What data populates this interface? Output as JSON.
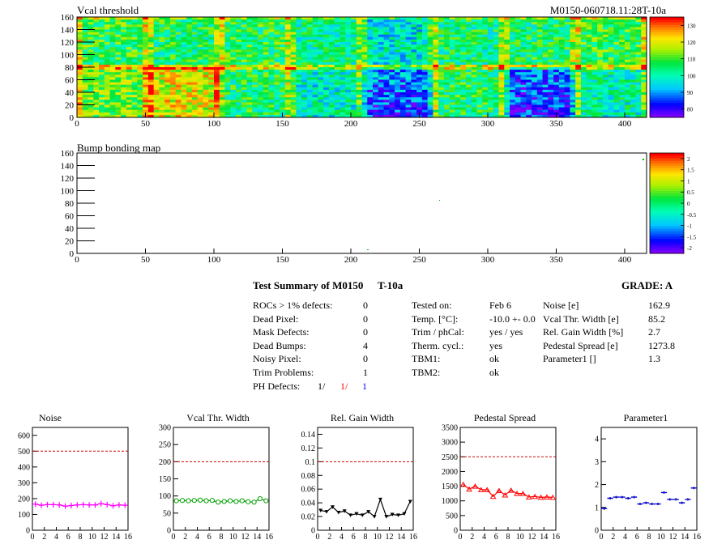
{
  "header": {
    "map_title": "Vcal threshold",
    "module_id": "M0150-060718.11:28T-10a",
    "bump_title": "Bump bonding map"
  },
  "maps": {
    "x_ticks": [
      "0",
      "50",
      "100",
      "150",
      "200",
      "250",
      "300",
      "350",
      "400"
    ],
    "y_ticks": [
      "0",
      "20",
      "40",
      "60",
      "80",
      "100",
      "120",
      "140",
      "160"
    ],
    "vcal_palette_ticks": [
      "80",
      "90",
      "100",
      "110",
      "120",
      "130"
    ],
    "bump_palette_ticks": [
      "-2",
      "-1.5",
      "-1",
      "-0.5",
      "0",
      "0.5",
      "1",
      "1.5",
      "2"
    ]
  },
  "summary": {
    "title": "Test Summary of M0150",
    "temp_tag": "T-10a",
    "grade": "GRADE:  A",
    "defects": [
      {
        "label": "ROCs > 1% defects:",
        "value": "0"
      },
      {
        "label": "Dead Pixel:",
        "value": "0"
      },
      {
        "label": "Mask Defects:",
        "value": "0"
      },
      {
        "label": "Dead Bumps:",
        "value": "4"
      },
      {
        "label": "Noisy Pixel:",
        "value": "0"
      },
      {
        "label": "Trim Problems:",
        "value": "1"
      }
    ],
    "ph": {
      "label": "PH Defects:",
      "v1": "1/",
      "v2": "1/",
      "v3": "1"
    },
    "conditions": [
      {
        "label": "Tested on:",
        "value": "Feb 6"
      },
      {
        "label": "Temp. [°C]:",
        "value": "-10.0 +- 0.0"
      },
      {
        "label": "Trim / phCal:",
        "value": "yes / yes"
      },
      {
        "label": "Therm. cycl.:",
        "value": "yes"
      },
      {
        "label": "TBM1:",
        "value": "ok"
      },
      {
        "label": "TBM2:",
        "value": "ok"
      }
    ],
    "results": [
      {
        "label": "Noise [e]",
        "value": "162.9"
      },
      {
        "label": "Vcal Thr. Width [e]",
        "value": "85.2"
      },
      {
        "label": "Rel. Gain Width [%]",
        "value": "2.7"
      },
      {
        "label": "Pedestal Spread [e]",
        "value": "1273.8"
      },
      {
        "label": "Parameter1 []",
        "value": "1.3"
      }
    ]
  },
  "colors": {
    "noise": "#ff00ff",
    "vcal": "#00a000",
    "gain": "#000000",
    "pedestal": "#ff0000",
    "param1": "#0000cc",
    "limit": "#cc0000"
  },
  "chart_data": [
    {
      "type": "line",
      "title": "Noise",
      "x": [
        0,
        1,
        2,
        3,
        4,
        5,
        6,
        7,
        8,
        9,
        10,
        11,
        12,
        13,
        14,
        15
      ],
      "values": [
        165,
        158,
        162,
        162,
        160,
        152,
        156,
        160,
        162,
        160,
        160,
        168,
        162,
        155,
        160,
        158
      ],
      "ylim": [
        0,
        650
      ],
      "xlim": [
        0,
        16
      ],
      "y_ticks": [
        "0",
        "100",
        "200",
        "300",
        "400",
        "500",
        "600"
      ],
      "x_ticks": [
        "0",
        "2",
        "4",
        "6",
        "8",
        "10",
        "12",
        "14",
        "16"
      ],
      "limit_line": 500,
      "marker": "cross"
    },
    {
      "type": "line",
      "title": "Vcal Thr. Width",
      "x": [
        0,
        1,
        2,
        3,
        4,
        5,
        6,
        7,
        8,
        9,
        10,
        11,
        12,
        13,
        14,
        15
      ],
      "values": [
        86,
        87,
        86,
        87,
        88,
        86,
        87,
        82,
        84,
        86,
        84,
        86,
        83,
        82,
        92,
        86
      ],
      "ylim": [
        0,
        300
      ],
      "xlim": [
        0,
        16
      ],
      "y_ticks": [
        "0",
        "50",
        "100",
        "150",
        "200",
        "250",
        "300"
      ],
      "x_ticks": [
        "0",
        "2",
        "4",
        "6",
        "8",
        "10",
        "12",
        "14",
        "16"
      ],
      "limit_line": 200,
      "marker": "circle"
    },
    {
      "type": "line",
      "title": "Rel. Gain Width",
      "x": [
        0,
        1,
        2,
        3,
        4,
        5,
        6,
        7,
        8,
        9,
        10,
        11,
        12,
        13,
        14,
        15
      ],
      "values": [
        0.029,
        0.027,
        0.034,
        0.026,
        0.028,
        0.022,
        0.024,
        0.022,
        0.027,
        0.02,
        0.045,
        0.02,
        0.023,
        0.022,
        0.024,
        0.042
      ],
      "ylim": [
        0,
        0.15
      ],
      "xlim": [
        0,
        16
      ],
      "y_ticks": [
        "0",
        "0.02",
        "0.04",
        "0.06",
        "0.08",
        "0.1",
        "0.12",
        "0.14"
      ],
      "x_ticks": [
        "0",
        "2",
        "4",
        "6",
        "8",
        "10",
        "12",
        "14",
        "16"
      ],
      "limit_line": 0.1,
      "marker": "triangle-down"
    },
    {
      "type": "line",
      "title": "Pedestal Spread",
      "x": [
        0,
        1,
        2,
        3,
        4,
        5,
        6,
        7,
        8,
        9,
        10,
        11,
        12,
        13,
        14,
        15
      ],
      "values": [
        1560,
        1400,
        1500,
        1380,
        1380,
        1150,
        1350,
        1200,
        1360,
        1250,
        1250,
        1130,
        1150,
        1120,
        1130,
        1120
      ],
      "ylim": [
        0,
        3500
      ],
      "xlim": [
        0,
        16
      ],
      "y_ticks": [
        "0",
        "500",
        "1000",
        "1500",
        "2000",
        "2500",
        "3000",
        "3500"
      ],
      "x_ticks": [
        "0",
        "2",
        "4",
        "6",
        "8",
        "10",
        "12",
        "14",
        "16"
      ],
      "limit_line": 2500,
      "marker": "triangle-up"
    },
    {
      "type": "scatter",
      "title": "Parameter1",
      "x": [
        0,
        1,
        2,
        3,
        4,
        5,
        6,
        7,
        8,
        9,
        10,
        11,
        12,
        13,
        14,
        15
      ],
      "values": [
        0.95,
        1.4,
        1.45,
        1.45,
        1.4,
        1.45,
        1.15,
        1.2,
        1.15,
        1.15,
        1.65,
        1.35,
        1.35,
        1.2,
        1.35,
        1.85
      ],
      "ylim": [
        0,
        4.5
      ],
      "xlim": [
        0,
        16
      ],
      "y_ticks": [
        "0",
        "1",
        "2",
        "3",
        "4"
      ],
      "x_ticks": [
        "0",
        "2",
        "4",
        "6",
        "8",
        "10",
        "12",
        "14",
        "16"
      ],
      "marker": "hbar"
    }
  ]
}
